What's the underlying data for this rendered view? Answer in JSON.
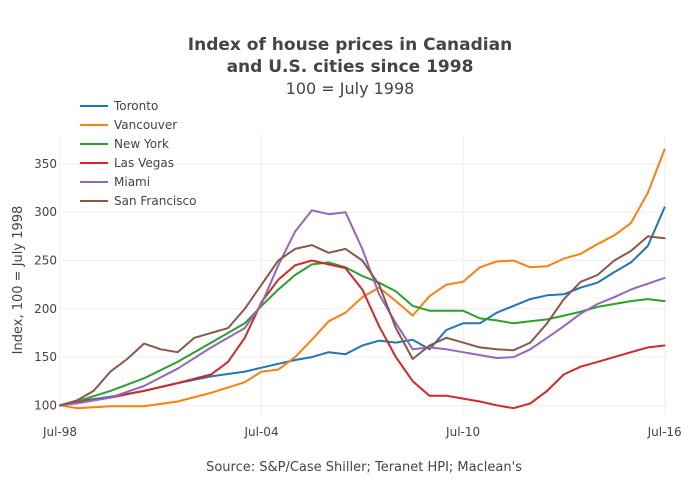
{
  "chart_data": {
    "type": "line",
    "title_line1": "Index of house prices in Canadian",
    "title_line2": "and U.S. cities since 1998",
    "subtitle": "100 = July 1998",
    "ylabel": "Index, 100 = July 1998",
    "xlabel": "Source: S&P/Case Shiller; Teranet HPI; Maclean's",
    "ylim": [
      90,
      380
    ],
    "xlim": [
      1998.5,
      2016.6
    ],
    "yticks": [
      100,
      150,
      200,
      250,
      300,
      350
    ],
    "xticks": [
      {
        "label": "Jul-98",
        "value": 1998.5
      },
      {
        "label": "Jul-04",
        "value": 2004.5
      },
      {
        "label": "Jul-10",
        "value": 2010.5
      },
      {
        "label": "Jul-16",
        "value": 2016.5
      }
    ],
    "legend_position": "top-left",
    "grid": true,
    "series": [
      {
        "name": "Toronto",
        "color": "#1f77b4",
        "x": [
          1998.5,
          1999.0,
          2000.0,
          2001.0,
          2002.0,
          2003.0,
          2004.0,
          2004.5,
          2005.0,
          2005.5,
          2006.0,
          2006.5,
          2007.0,
          2007.5,
          2008.0,
          2008.5,
          2009.0,
          2009.5,
          2010.0,
          2010.5,
          2011.0,
          2011.5,
          2012.0,
          2012.5,
          2013.0,
          2013.5,
          2014.0,
          2014.5,
          2015.0,
          2015.5,
          2016.0,
          2016.5
        ],
        "values": [
          100,
          104,
          109,
          115,
          123,
          130,
          135,
          139,
          143,
          147,
          150,
          155,
          153,
          162,
          167,
          165,
          168,
          158,
          178,
          185,
          185,
          196,
          203,
          210,
          214,
          215,
          222,
          227,
          238,
          248,
          265,
          305
        ]
      },
      {
        "name": "Vancouver",
        "color": "#ff7f0e",
        "x": [
          1998.5,
          1999.0,
          2000.0,
          2001.0,
          2002.0,
          2003.0,
          2004.0,
          2004.5,
          2005.0,
          2005.5,
          2006.0,
          2006.5,
          2007.0,
          2007.5,
          2008.0,
          2008.5,
          2009.0,
          2009.5,
          2010.0,
          2010.5,
          2011.0,
          2011.5,
          2012.0,
          2012.5,
          2013.0,
          2013.5,
          2014.0,
          2014.5,
          2015.0,
          2015.5,
          2016.0,
          2016.5
        ],
        "values": [
          100,
          97,
          99,
          99,
          104,
          113,
          124,
          135,
          137,
          150,
          168,
          187,
          196,
          212,
          222,
          208,
          193,
          213,
          225,
          228,
          243,
          249,
          250,
          243,
          244,
          252,
          257,
          267,
          276,
          289,
          320,
          365
        ]
      },
      {
        "name": "New York",
        "color": "#2ca02c",
        "x": [
          1998.5,
          1999.0,
          2000.0,
          2001.0,
          2002.0,
          2003.0,
          2004.0,
          2004.5,
          2005.0,
          2005.5,
          2006.0,
          2006.5,
          2007.0,
          2007.5,
          2008.0,
          2008.5,
          2009.0,
          2009.5,
          2010.0,
          2010.5,
          2011.0,
          2011.5,
          2012.0,
          2012.5,
          2013.0,
          2013.5,
          2014.0,
          2014.5,
          2015.0,
          2015.5,
          2016.0,
          2016.5
        ],
        "values": [
          100,
          104,
          115,
          128,
          145,
          165,
          185,
          203,
          220,
          235,
          246,
          248,
          243,
          234,
          227,
          218,
          203,
          198,
          198,
          198,
          190,
          188,
          185,
          187,
          189,
          193,
          197,
          202,
          205,
          208,
          210,
          208
        ]
      },
      {
        "name": "Las Vegas",
        "color": "#d62728",
        "x": [
          1998.5,
          1999.0,
          2000.0,
          2001.0,
          2002.0,
          2003.0,
          2003.5,
          2004.0,
          2004.5,
          2005.0,
          2005.5,
          2006.0,
          2006.5,
          2007.0,
          2007.5,
          2008.0,
          2008.5,
          2009.0,
          2009.5,
          2010.0,
          2010.5,
          2011.0,
          2011.5,
          2012.0,
          2012.5,
          2013.0,
          2013.5,
          2014.0,
          2014.5,
          2015.0,
          2015.5,
          2016.0,
          2016.5
        ],
        "values": [
          100,
          103,
          108,
          115,
          123,
          132,
          145,
          170,
          207,
          230,
          245,
          250,
          246,
          242,
          220,
          182,
          150,
          125,
          110,
          110,
          107,
          104,
          100,
          97,
          102,
          115,
          132,
          140,
          145,
          150,
          155,
          160,
          162
        ]
      },
      {
        "name": "Miami",
        "color": "#9467bd",
        "x": [
          1998.5,
          1999.0,
          2000.0,
          2001.0,
          2002.0,
          2003.0,
          2004.0,
          2004.5,
          2005.0,
          2005.5,
          2006.0,
          2006.5,
          2007.0,
          2007.5,
          2008.0,
          2008.5,
          2009.0,
          2009.5,
          2010.0,
          2010.5,
          2011.0,
          2011.5,
          2012.0,
          2012.5,
          2013.0,
          2013.5,
          2014.0,
          2014.5,
          2015.0,
          2015.5,
          2016.0,
          2016.5
        ],
        "values": [
          100,
          102,
          108,
          120,
          138,
          160,
          180,
          205,
          245,
          280,
          302,
          298,
          300,
          262,
          215,
          185,
          158,
          160,
          158,
          155,
          152,
          149,
          150,
          158,
          170,
          182,
          195,
          205,
          212,
          220,
          226,
          232
        ]
      },
      {
        "name": "San Francisco",
        "color": "#8c564b",
        "x": [
          1998.5,
          1999.0,
          1999.5,
          2000.0,
          2000.5,
          2001.0,
          2001.5,
          2002.0,
          2002.5,
          2003.0,
          2003.5,
          2004.0,
          2004.5,
          2005.0,
          2005.5,
          2006.0,
          2006.5,
          2007.0,
          2007.5,
          2008.0,
          2008.5,
          2009.0,
          2009.5,
          2010.0,
          2010.5,
          2011.0,
          2011.5,
          2012.0,
          2012.5,
          2013.0,
          2013.5,
          2014.0,
          2014.5,
          2015.0,
          2015.5,
          2016.0,
          2016.5
        ],
        "values": [
          100,
          105,
          115,
          135,
          148,
          164,
          158,
          155,
          170,
          175,
          180,
          200,
          225,
          250,
          262,
          266,
          258,
          262,
          250,
          225,
          180,
          148,
          162,
          170,
          165,
          160,
          158,
          157,
          165,
          185,
          210,
          228,
          235,
          250,
          260,
          275,
          273
        ]
      }
    ]
  }
}
